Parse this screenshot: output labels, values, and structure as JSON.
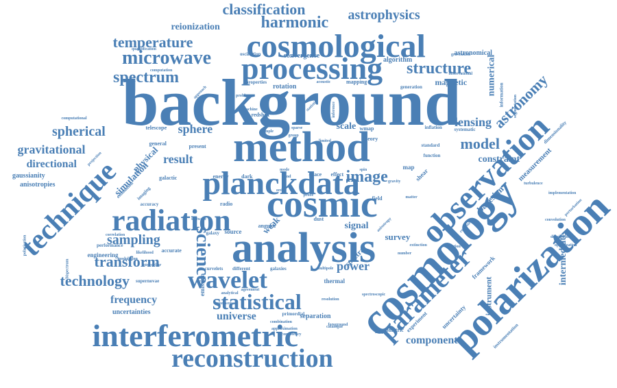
{
  "cloud": {
    "color": "#4a7fb5",
    "background": "#ffffff",
    "words": [
      {
        "text": "background",
        "weight": 100,
        "rotation": "horizontal"
      },
      {
        "text": "method",
        "weight": 70,
        "rotation": "horizontal"
      },
      {
        "text": "analysis",
        "weight": 68,
        "rotation": "horizontal"
      },
      {
        "text": "cosmology",
        "weight": 68,
        "rotation": "diagonal-up"
      },
      {
        "text": "observation",
        "weight": 66,
        "rotation": "diagonal-up"
      },
      {
        "text": "polarization",
        "weight": 62,
        "rotation": "diagonal-up"
      },
      {
        "text": "technique",
        "weight": 55,
        "rotation": "diagonal-up"
      },
      {
        "text": "cosmic",
        "weight": 55,
        "rotation": "horizontal"
      },
      {
        "text": "planckdata",
        "weight": 52,
        "rotation": "horizontal"
      },
      {
        "text": "cosmological",
        "weight": 50,
        "rotation": "horizontal"
      },
      {
        "text": "interferometric",
        "weight": 48,
        "rotation": "horizontal"
      },
      {
        "text": "processing",
        "weight": 44,
        "rotation": "horizontal"
      },
      {
        "text": "radiation",
        "weight": 44,
        "rotation": "horizontal"
      },
      {
        "text": "parameter",
        "weight": 40,
        "rotation": "diagonal-up"
      },
      {
        "text": "reconstruction",
        "weight": 38,
        "rotation": "horizontal"
      },
      {
        "text": "wavelet",
        "weight": 36,
        "rotation": "horizontal"
      },
      {
        "text": "statistical",
        "weight": 32,
        "rotation": "horizontal"
      },
      {
        "text": "science",
        "weight": 30,
        "rotation": "vertical-down"
      },
      {
        "text": "microwave",
        "weight": 28,
        "rotation": "horizontal"
      },
      {
        "text": "spectrum",
        "weight": 26,
        "rotation": "horizontal"
      },
      {
        "text": "technology",
        "weight": 26,
        "rotation": "horizontal"
      },
      {
        "text": "structure",
        "weight": 24,
        "rotation": "horizontal"
      },
      {
        "text": "image",
        "weight": 24,
        "rotation": "horizontal"
      },
      {
        "text": "model",
        "weight": 22,
        "rotation": "horizontal"
      },
      {
        "text": "astronomy",
        "weight": 22,
        "rotation": "diagonal-up"
      },
      {
        "text": "transform",
        "weight": 22,
        "rotation": "horizontal"
      },
      {
        "text": "sampling",
        "weight": 22,
        "rotation": "horizontal"
      },
      {
        "text": "harmonic",
        "weight": 22,
        "rotation": "horizontal"
      },
      {
        "text": "temperature",
        "weight": 22,
        "rotation": "horizontal"
      },
      {
        "text": "classification",
        "weight": 20,
        "rotation": "horizontal"
      },
      {
        "text": "astrophysics",
        "weight": 20,
        "rotation": "horizontal"
      },
      {
        "text": "spherical",
        "weight": 20,
        "rotation": "horizontal"
      },
      {
        "text": "gravitational",
        "weight": 18,
        "rotation": "horizontal"
      },
      {
        "text": "directional",
        "weight": 18,
        "rotation": "horizontal"
      },
      {
        "text": "sphere",
        "weight": 18,
        "rotation": "horizontal"
      },
      {
        "text": "result",
        "weight": 18,
        "rotation": "horizontal"
      },
      {
        "text": "lensing",
        "weight": 18,
        "rotation": "horizontal"
      },
      {
        "text": "power",
        "weight": 18,
        "rotation": "horizontal"
      },
      {
        "text": "universe",
        "weight": 16,
        "rotation": "horizontal"
      },
      {
        "text": "frequency",
        "weight": 16,
        "rotation": "horizontal"
      },
      {
        "text": "component",
        "weight": 16,
        "rotation": "horizontal"
      },
      {
        "text": "reionization",
        "weight": 15,
        "rotation": "horizontal"
      },
      {
        "text": "constraint",
        "weight": 15,
        "rotation": "horizontal"
      },
      {
        "text": "numerical",
        "weight": 14,
        "rotation": "vertical-up"
      },
      {
        "text": "signal",
        "weight": 14,
        "rotation": "horizontal"
      },
      {
        "text": "survey",
        "weight": 14,
        "rotation": "horizontal"
      },
      {
        "text": "scale",
        "weight": 14,
        "rotation": "horizontal"
      },
      {
        "text": "simulation",
        "weight": 14,
        "rotation": "diagonal-up"
      },
      {
        "text": "physical",
        "weight": 13,
        "rotation": "diagonal-up"
      },
      {
        "text": "magnetic",
        "weight": 13,
        "rotation": "horizontal"
      },
      {
        "text": "bayesian",
        "weight": 13,
        "rotation": "diagonal-up"
      },
      {
        "text": "weak",
        "weight": 13,
        "rotation": "diagonal-up"
      },
      {
        "text": "measurement",
        "weight": 12,
        "rotation": "diagonal-up"
      },
      {
        "text": "intermediate",
        "weight": 12,
        "rotation": "vertical-up"
      },
      {
        "text": "instrument",
        "weight": 12,
        "rotation": "vertical-up"
      },
      {
        "text": "spectra",
        "weight": 11,
        "rotation": "diagonal-up"
      },
      {
        "text": "separation",
        "weight": 10,
        "rotation": "horizontal"
      },
      {
        "text": "uncertainties",
        "weight": 10,
        "rotation": "horizontal"
      },
      {
        "text": "anisotropies",
        "weight": 10,
        "rotation": "horizontal"
      },
      {
        "text": "gaussianity",
        "weight": 10,
        "rotation": "horizontal"
      },
      {
        "text": "engineering",
        "weight": 9,
        "rotation": "horizontal"
      },
      {
        "text": "convergence",
        "weight": 10,
        "rotation": "horizontal"
      },
      {
        "text": "algorithm",
        "weight": 10,
        "rotation": "horizontal"
      },
      {
        "text": "astronomical",
        "weight": 9,
        "rotation": "horizontal"
      },
      {
        "text": "uncertainty",
        "weight": 9,
        "rotation": "diagonal-up"
      },
      {
        "text": "framework",
        "weight": 9,
        "rotation": "diagonal-up"
      },
      {
        "text": "emission",
        "weight": 9,
        "rotation": "vertical-up"
      },
      {
        "text": "thermal",
        "weight": 9,
        "rotation": "horizontal"
      },
      {
        "text": "photometric",
        "weight": 8,
        "rotation": "horizontal"
      },
      {
        "text": "experiment",
        "weight": 8,
        "rotation": "diagonal-up"
      },
      {
        "text": "rotation",
        "weight": 9,
        "rotation": "horizontal"
      },
      {
        "text": "mapping",
        "weight": 7,
        "rotation": "horizontal"
      },
      {
        "text": "redshift",
        "weight": 8,
        "rotation": "horizontal"
      },
      {
        "text": "telescope",
        "weight": 8,
        "rotation": "horizontal"
      },
      {
        "text": "general",
        "weight": 8,
        "rotation": "horizontal"
      },
      {
        "text": "present",
        "weight": 8,
        "rotation": "horizontal"
      },
      {
        "text": "galactic",
        "weight": 8,
        "rotation": "horizontal"
      },
      {
        "text": "energy",
        "weight": 8,
        "rotation": "horizontal"
      },
      {
        "text": "dark",
        "weight": 8,
        "rotation": "horizontal"
      },
      {
        "text": "space",
        "weight": 8,
        "rotation": "horizontal"
      },
      {
        "text": "effect",
        "weight": 8,
        "rotation": "horizontal"
      },
      {
        "text": "field",
        "weight": 8,
        "rotation": "horizontal"
      },
      {
        "text": "radio",
        "weight": 8,
        "rotation": "horizontal"
      },
      {
        "text": "source",
        "weight": 8,
        "rotation": "horizontal"
      },
      {
        "text": "angular",
        "weight": 7,
        "rotation": "horizontal"
      },
      {
        "text": "dust",
        "weight": 8,
        "rotation": "horizontal"
      },
      {
        "text": "galaxy",
        "weight": 7,
        "rotation": "horizontal"
      },
      {
        "text": "accurate",
        "weight": 7,
        "rotation": "horizontal"
      },
      {
        "text": "supernovae",
        "weight": 7,
        "rotation": "horizontal"
      },
      {
        "text": "performance",
        "weight": 6,
        "rotation": "horizontal"
      },
      {
        "text": "wmap",
        "weight": 7,
        "rotation": "horizontal"
      },
      {
        "text": "theory",
        "weight": 7,
        "rotation": "horizontal"
      },
      {
        "text": "standard",
        "weight": 6,
        "rotation": "horizontal"
      },
      {
        "text": "function",
        "weight": 6,
        "rotation": "horizontal"
      },
      {
        "text": "inflation",
        "weight": 6,
        "rotation": "horizontal"
      },
      {
        "text": "systematic",
        "weight": 6,
        "rotation": "horizontal"
      },
      {
        "text": "dimensionality",
        "weight": 6,
        "rotation": "diagonal-up"
      },
      {
        "text": "turbulence",
        "weight": 5,
        "rotation": "horizontal"
      },
      {
        "text": "distribution",
        "weight": 5,
        "rotation": "horizontal"
      },
      {
        "text": "optimization",
        "weight": 5,
        "rotation": "horizontal"
      },
      {
        "text": "catalogue",
        "weight": 6,
        "rotation": "horizontal"
      },
      {
        "text": "resolution",
        "weight": 6,
        "rotation": "horizontal"
      },
      {
        "text": "different",
        "weight": 6,
        "rotation": "horizontal"
      },
      {
        "text": "curvelets",
        "weight": 6,
        "rotation": "horizontal"
      },
      {
        "text": "galaxies",
        "weight": 6,
        "rotation": "horizontal"
      },
      {
        "text": "primordial",
        "weight": 6,
        "rotation": "horizontal"
      },
      {
        "text": "analytical",
        "weight": 5,
        "rotation": "horizontal"
      },
      {
        "text": "agreement",
        "weight": 5,
        "rotation": "horizontal"
      },
      {
        "text": "computational",
        "weight": 6,
        "rotation": "horizontal"
      },
      {
        "text": "quantification",
        "weight": 5,
        "rotation": "horizontal"
      },
      {
        "text": "oscillation",
        "weight": 6,
        "rotation": "horizontal"
      },
      {
        "text": "properties",
        "weight": 6,
        "rotation": "horizontal"
      },
      {
        "text": "acoustic",
        "weight": 5,
        "rotation": "horizontal"
      },
      {
        "text": "computation",
        "weight": 5,
        "rotation": "horizontal"
      },
      {
        "text": "approach",
        "weight": 5,
        "rotation": "diagonal-up"
      },
      {
        "text": "machine",
        "weight": 5,
        "rotation": "horizontal"
      },
      {
        "text": "problem",
        "weight": 5,
        "rotation": "horizontal"
      },
      {
        "text": "sample",
        "weight": 5,
        "rotation": "horizontal"
      },
      {
        "text": "group",
        "weight": 5,
        "rotation": "horizontal"
      },
      {
        "text": "sparse",
        "weight": 5,
        "rotation": "horizontal"
      },
      {
        "text": "statistic",
        "weight": 5,
        "rotation": "diagonal-up"
      },
      {
        "text": "inference",
        "weight": 5,
        "rotation": "vertical-up"
      },
      {
        "text": "shear",
        "weight": 7,
        "rotation": "diagonal-up"
      },
      {
        "text": "map",
        "weight": 7,
        "rotation": "horizontal"
      },
      {
        "text": "consistent",
        "weight": 5,
        "rotation": "diagonal-up"
      },
      {
        "text": "detection",
        "weight": 5,
        "rotation": "horizontal"
      },
      {
        "text": "imaging",
        "weight": 6,
        "rotation": "diagonal-up"
      },
      {
        "text": "estimation",
        "weight": 6,
        "rotation": "diagonal-up"
      },
      {
        "text": "accuracy",
        "weight": 6,
        "rotation": "horizontal"
      },
      {
        "text": "projection",
        "weight": 5,
        "rotation": "diagonal-up"
      },
      {
        "text": "bispectrum",
        "weight": 5,
        "rotation": "vertical-up"
      },
      {
        "text": "polarisation",
        "weight": 4,
        "rotation": "vertical-up"
      },
      {
        "text": "correlation",
        "weight": 4,
        "rotation": "horizontal"
      },
      {
        "text": "interstellar",
        "weight": 5,
        "rotation": "horizontal"
      },
      {
        "text": "likelihood",
        "weight": 5,
        "rotation": "horizontal"
      },
      {
        "text": "modulation",
        "weight": 4,
        "rotation": "horizontal"
      },
      {
        "text": "improvement",
        "weight": 5,
        "rotation": "horizontal"
      },
      {
        "text": "software",
        "weight": 4,
        "rotation": "horizontal"
      },
      {
        "text": "combination",
        "weight": 4,
        "rotation": "horizontal"
      },
      {
        "text": "approximation",
        "weight": 4,
        "rotation": "horizontal"
      },
      {
        "text": "consistency",
        "weight": 4,
        "rotation": "horizontal"
      },
      {
        "text": "foreground",
        "weight": 4,
        "rotation": "horizontal"
      },
      {
        "text": "spectroscopic",
        "weight": 4,
        "rotation": "horizontal"
      },
      {
        "text": "instrumentation",
        "weight": 5,
        "rotation": "diagonal-up"
      },
      {
        "text": "extinction",
        "weight": 4,
        "rotation": "horizontal"
      },
      {
        "text": "number",
        "weight": 5,
        "rotation": "horizontal"
      },
      {
        "text": "implementation",
        "weight": 4,
        "rotation": "horizontal"
      },
      {
        "text": "perturbation",
        "weight": 4,
        "rotation": "diagonal-up"
      },
      {
        "text": "convolution",
        "weight": 4,
        "rotation": "horizontal"
      },
      {
        "text": "matter",
        "weight": 5,
        "rotation": "horizontal"
      },
      {
        "text": "gravity",
        "weight": 5,
        "rotation": "horizontal"
      },
      {
        "text": "spin",
        "weight": 5,
        "rotation": "horizontal"
      },
      {
        "text": "probe",
        "weight": 6,
        "rotation": "horizontal"
      },
      {
        "text": "limited",
        "weight": 5,
        "rotation": "horizontal"
      },
      {
        "text": "generation",
        "weight": 5,
        "rotation": "horizontal"
      },
      {
        "text": "gravitation",
        "weight": 4,
        "rotation": "horizontal"
      },
      {
        "text": "observational",
        "weight": 4,
        "rotation": "horizontal"
      },
      {
        "text": "information",
        "weight": 5,
        "rotation": "vertical-up"
      },
      {
        "text": "segmentation",
        "weight": 4,
        "rotation": "vertical-up"
      },
      {
        "text": "multipole",
        "weight": 4,
        "rotation": "horizontal"
      },
      {
        "text": "anisotropy",
        "weight": 4,
        "rotation": "diagonal-up"
      },
      {
        "text": "band",
        "weight": 4,
        "rotation": "horizontal"
      },
      {
        "text": "mode",
        "weight": 5,
        "rotation": "horizontal"
      },
      {
        "text": "order",
        "weight": 4,
        "rotation": "horizontal"
      }
    ]
  }
}
